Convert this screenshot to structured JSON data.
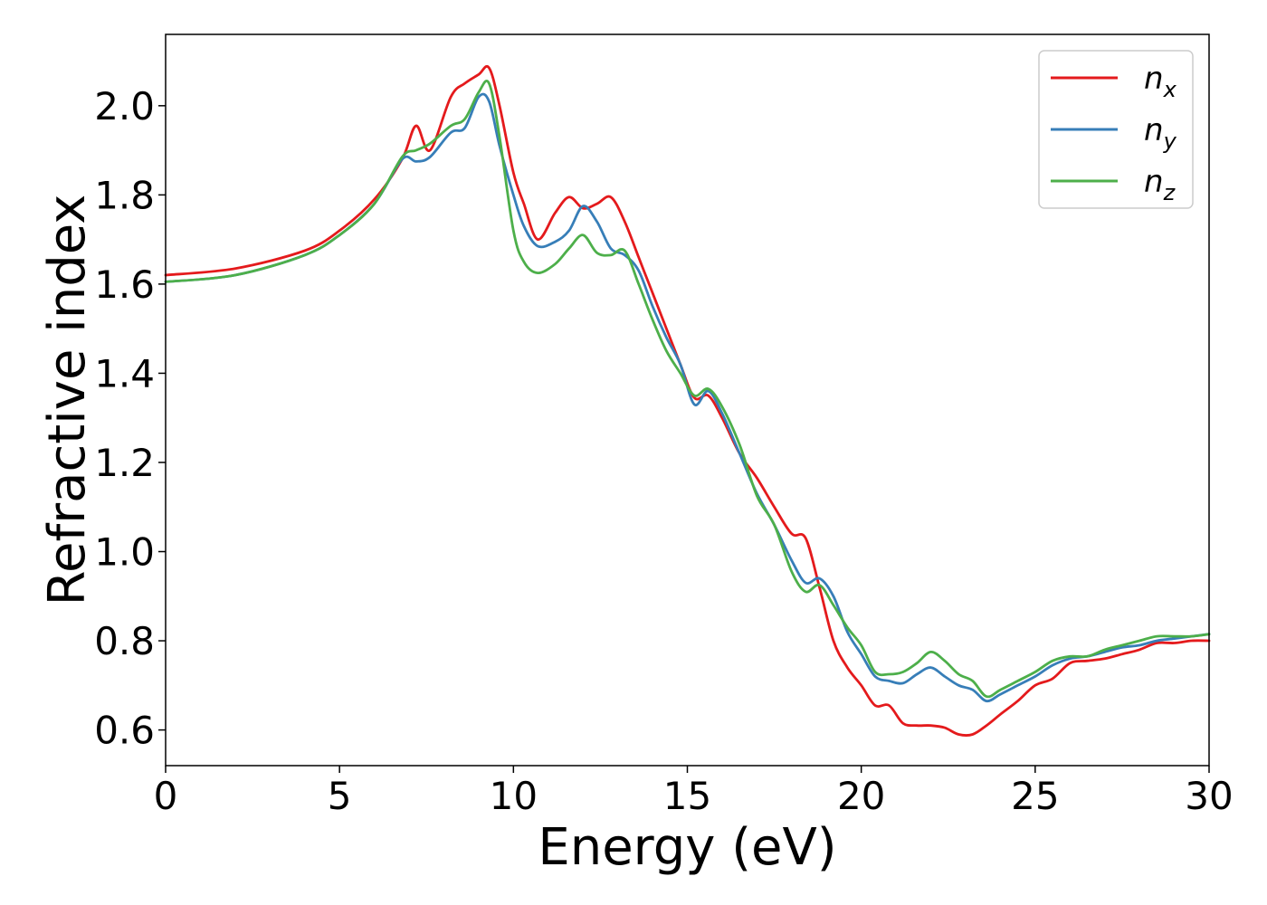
{
  "chart_data": {
    "type": "line",
    "title": "",
    "xlabel": "Energy (eV)",
    "ylabel": "Refractive index",
    "xlim": [
      0,
      30
    ],
    "ylim": [
      0.52,
      2.16
    ],
    "xticks": [
      0,
      5,
      10,
      15,
      20,
      25,
      30
    ],
    "xtick_labels": [
      "0",
      "5",
      "10",
      "15",
      "20",
      "25",
      "30"
    ],
    "yticks": [
      0.6,
      0.8,
      1.0,
      1.2,
      1.4,
      1.6,
      1.8,
      2.0
    ],
    "ytick_labels": [
      "0.6",
      "0.8",
      "1.0",
      "1.2",
      "1.4",
      "1.6",
      "1.8",
      "2.0"
    ],
    "grid": false,
    "legend_position": "top-right",
    "series": [
      {
        "name": "n",
        "subscript": "x",
        "color": "#e41a1c",
        "x": [
          0,
          2,
          4,
          5,
          6,
          6.8,
          7.2,
          7.6,
          8.2,
          8.6,
          9.0,
          9.3,
          9.6,
          10.0,
          10.3,
          10.7,
          11.2,
          11.6,
          12.0,
          12.4,
          12.8,
          13.2,
          13.6,
          14.0,
          14.4,
          14.8,
          15.2,
          15.6,
          16.0,
          16.5,
          17.0,
          17.5,
          18.0,
          18.4,
          18.8,
          19.2,
          19.6,
          20.0,
          20.4,
          20.8,
          21.2,
          21.6,
          22.0,
          22.4,
          22.8,
          23.2,
          23.6,
          24.0,
          24.5,
          25.0,
          25.5,
          26.0,
          26.5,
          27.0,
          27.5,
          28.0,
          28.5,
          29.0,
          29.5,
          30.0
        ],
        "y": [
          1.62,
          1.635,
          1.675,
          1.72,
          1.79,
          1.88,
          1.955,
          1.9,
          2.02,
          2.05,
          2.07,
          2.085,
          2.0,
          1.85,
          1.78,
          1.7,
          1.76,
          1.795,
          1.77,
          1.78,
          1.795,
          1.74,
          1.66,
          1.58,
          1.5,
          1.42,
          1.345,
          1.35,
          1.3,
          1.22,
          1.165,
          1.1,
          1.04,
          1.03,
          0.92,
          0.8,
          0.74,
          0.7,
          0.655,
          0.655,
          0.615,
          0.61,
          0.61,
          0.605,
          0.59,
          0.59,
          0.61,
          0.635,
          0.665,
          0.7,
          0.715,
          0.75,
          0.755,
          0.76,
          0.77,
          0.78,
          0.795,
          0.795,
          0.8,
          0.8
        ]
      },
      {
        "name": "n",
        "subscript": "y",
        "color": "#377eb8",
        "x": [
          0,
          2,
          4,
          5,
          6,
          6.8,
          7.2,
          7.6,
          8.2,
          8.6,
          9.0,
          9.3,
          9.6,
          10.0,
          10.3,
          10.7,
          11.2,
          11.6,
          12.0,
          12.4,
          12.8,
          13.2,
          13.6,
          14.0,
          14.4,
          14.8,
          15.2,
          15.6,
          16.0,
          16.5,
          17.0,
          17.5,
          18.0,
          18.4,
          18.8,
          19.2,
          19.6,
          20.0,
          20.4,
          20.8,
          21.2,
          21.6,
          22.0,
          22.4,
          22.8,
          23.2,
          23.6,
          24.0,
          24.5,
          25.0,
          25.5,
          26.0,
          26.5,
          27.0,
          27.5,
          28.0,
          28.5,
          29.0,
          29.5,
          30.0
        ],
        "y": [
          1.605,
          1.62,
          1.665,
          1.71,
          1.78,
          1.88,
          1.875,
          1.885,
          1.94,
          1.95,
          2.02,
          2.01,
          1.91,
          1.8,
          1.73,
          1.685,
          1.695,
          1.72,
          1.775,
          1.74,
          1.68,
          1.665,
          1.63,
          1.55,
          1.48,
          1.42,
          1.33,
          1.36,
          1.31,
          1.22,
          1.13,
          1.06,
          0.98,
          0.93,
          0.94,
          0.9,
          0.82,
          0.77,
          0.72,
          0.71,
          0.705,
          0.725,
          0.74,
          0.72,
          0.7,
          0.69,
          0.665,
          0.68,
          0.7,
          0.72,
          0.745,
          0.76,
          0.765,
          0.775,
          0.785,
          0.79,
          0.8,
          0.805,
          0.81,
          0.815
        ]
      },
      {
        "name": "n",
        "subscript": "z",
        "color": "#4daf4a",
        "x": [
          0,
          2,
          4,
          5,
          6,
          6.8,
          7.2,
          7.6,
          8.2,
          8.6,
          9.0,
          9.3,
          9.6,
          10.0,
          10.3,
          10.7,
          11.2,
          11.6,
          12.0,
          12.4,
          12.8,
          13.2,
          13.6,
          14.0,
          14.4,
          14.8,
          15.2,
          15.6,
          16.0,
          16.5,
          17.0,
          17.5,
          18.0,
          18.4,
          18.8,
          19.2,
          19.6,
          20.0,
          20.4,
          20.8,
          21.2,
          21.6,
          22.0,
          22.4,
          22.8,
          23.2,
          23.6,
          24.0,
          24.5,
          25.0,
          25.5,
          26.0,
          26.5,
          27.0,
          27.5,
          28.0,
          28.5,
          29.0,
          29.5,
          30.0
        ],
        "y": [
          1.605,
          1.62,
          1.665,
          1.71,
          1.78,
          1.885,
          1.9,
          1.915,
          1.955,
          1.97,
          2.03,
          2.05,
          1.93,
          1.72,
          1.65,
          1.625,
          1.645,
          1.68,
          1.71,
          1.67,
          1.665,
          1.675,
          1.6,
          1.52,
          1.45,
          1.4,
          1.35,
          1.365,
          1.325,
          1.24,
          1.125,
          1.06,
          0.955,
          0.91,
          0.925,
          0.88,
          0.83,
          0.79,
          0.73,
          0.725,
          0.73,
          0.75,
          0.775,
          0.755,
          0.725,
          0.71,
          0.675,
          0.69,
          0.71,
          0.73,
          0.755,
          0.765,
          0.765,
          0.78,
          0.79,
          0.8,
          0.81,
          0.81,
          0.81,
          0.815
        ]
      }
    ]
  }
}
